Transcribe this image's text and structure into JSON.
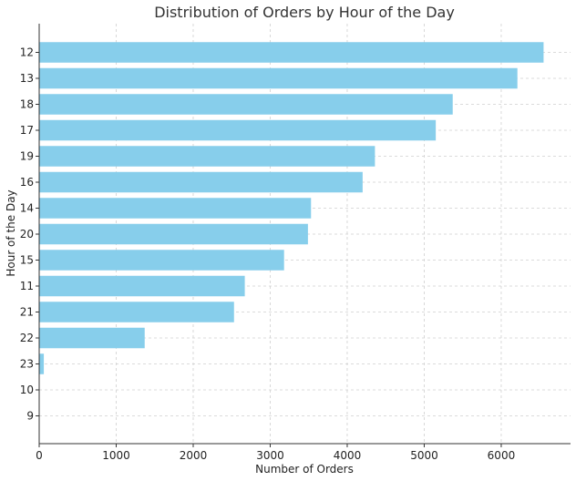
{
  "chart_data": {
    "type": "bar",
    "orientation": "horizontal",
    "title": "Distribution of Orders by Hour of the Day",
    "xlabel": "Number of Orders",
    "ylabel": "Hour of the Day",
    "categories": [
      "12",
      "13",
      "18",
      "17",
      "19",
      "16",
      "14",
      "20",
      "15",
      "11",
      "21",
      "22",
      "23",
      "10",
      "9"
    ],
    "values": [
      6550,
      6210,
      5370,
      5150,
      4360,
      4200,
      3530,
      3490,
      3180,
      2670,
      2530,
      1370,
      60,
      0,
      0
    ],
    "xlim": [
      0,
      6900
    ],
    "xticks": [
      0,
      1000,
      2000,
      3000,
      4000,
      5000,
      6000
    ],
    "grid": true,
    "bar_color": "#87ceeb"
  }
}
